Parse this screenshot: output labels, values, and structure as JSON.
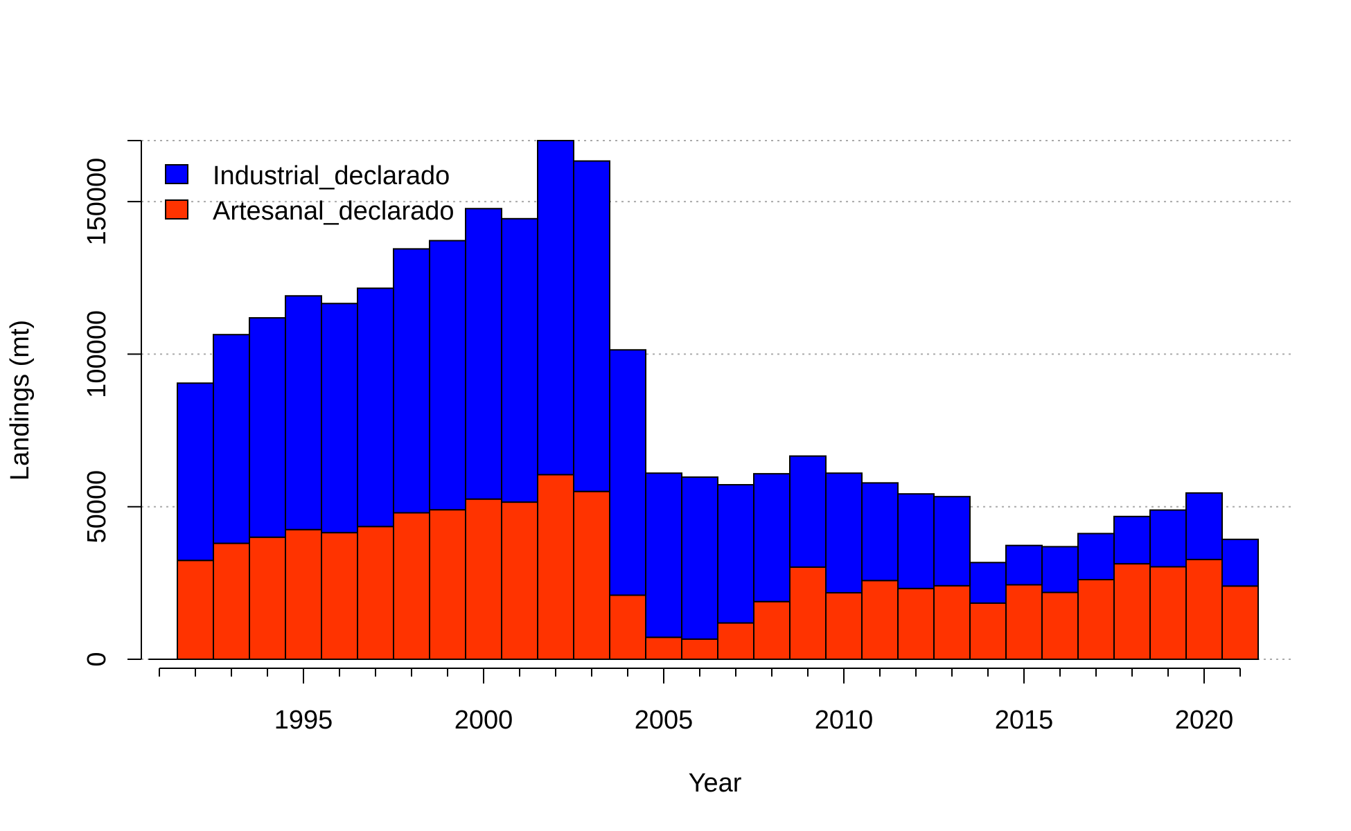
{
  "chart_data": {
    "type": "bar",
    "stacked": true,
    "xlabel": "Year",
    "ylabel": "Landings (mt)",
    "ylim": [
      0,
      170000
    ],
    "xlim": [
      1990.5,
      2022.5
    ],
    "y_ticks": [
      0,
      50000,
      100000,
      150000
    ],
    "y_tick_labels": [
      "0",
      "50000",
      "100000",
      "150000"
    ],
    "x_major_ticks": [
      1995,
      2000,
      2005,
      2010,
      2015,
      2020
    ],
    "x_major_tick_labels": [
      "1995",
      "2000",
      "2005",
      "2010",
      "2015",
      "2020"
    ],
    "x_minor_tick_range": [
      1991,
      2021
    ],
    "grid": "horizontal dotted",
    "legend_position": "top-left",
    "categories": [
      1992,
      1993,
      1994,
      1995,
      1996,
      1997,
      1998,
      1999,
      2000,
      2001,
      2002,
      2003,
      2004,
      2005,
      2006,
      2007,
      2008,
      2009,
      2010,
      2011,
      2012,
      2013,
      2014,
      2015,
      2016,
      2017,
      2018,
      2019,
      2020,
      2021
    ],
    "series": [
      {
        "name": "Artesanal_declarado",
        "color": "#ff3300",
        "values": [
          32400,
          38000,
          40000,
          42500,
          41500,
          43500,
          48000,
          49000,
          52500,
          51500,
          60500,
          55000,
          21000,
          7200,
          6600,
          11900,
          18900,
          30200,
          21800,
          25800,
          23200,
          24100,
          18400,
          24400,
          21900,
          26100,
          31300,
          30300,
          32700,
          24000
        ]
      },
      {
        "name": "Industrial_declarado",
        "color": "#0000ff",
        "values": [
          58100,
          68400,
          71900,
          76600,
          75100,
          78100,
          86500,
          88200,
          95200,
          92900,
          109500,
          108300,
          80400,
          53800,
          53100,
          45300,
          41900,
          36400,
          39200,
          32000,
          31000,
          29200,
          13300,
          12900,
          15000,
          15100,
          15500,
          18600,
          21800,
          15300
        ]
      }
    ]
  }
}
